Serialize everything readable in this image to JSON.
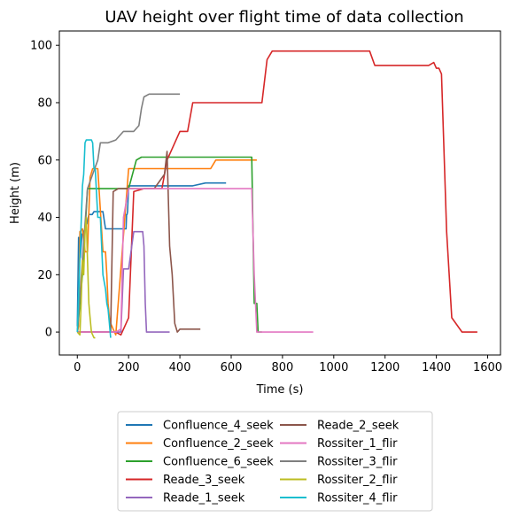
{
  "chart_data": {
    "type": "line",
    "title": "UAV height over flight time of data collection",
    "xlabel": "Time (s)",
    "ylabel": "Height (m)",
    "xlim": [
      -70,
      1650
    ],
    "ylim": [
      -8,
      105
    ],
    "xticks": [
      0,
      200,
      400,
      600,
      800,
      1000,
      1200,
      1400,
      1600
    ],
    "yticks": [
      0,
      20,
      40,
      60,
      80,
      100
    ],
    "grid": false,
    "legend_position": "below",
    "series": [
      {
        "name": "Confluence_4_seek",
        "color": "#1f77b4",
        "x": [
          0,
          5,
          12,
          18,
          25,
          30,
          38,
          45,
          52,
          58,
          65,
          70,
          80,
          90,
          100,
          110,
          120,
          128,
          132,
          140,
          150,
          160,
          170,
          180,
          190,
          192,
          194,
          196,
          200,
          205,
          210,
          220,
          240,
          300,
          400,
          450,
          500,
          540,
          560,
          580
        ],
        "y": [
          2,
          33,
          26,
          34,
          35,
          36,
          38,
          41,
          41,
          41,
          42,
          42,
          42,
          42,
          42,
          36,
          36,
          36,
          36,
          36,
          36,
          36,
          36,
          36,
          36,
          41,
          41,
          42,
          51,
          51,
          51,
          51,
          51,
          51,
          51,
          51,
          52,
          52,
          52,
          52
        ]
      },
      {
        "name": "Confluence_2_seek",
        "color": "#ff7f0e",
        "x": [
          0,
          5,
          10,
          20,
          30,
          40,
          50,
          60,
          80,
          100,
          110,
          115,
          120,
          125,
          130,
          135,
          140,
          145,
          150,
          200,
          300,
          400,
          500,
          520,
          540,
          560,
          600,
          650,
          700
        ],
        "y": [
          0,
          2,
          35,
          36,
          28,
          28,
          54,
          57,
          57,
          28,
          28,
          20,
          10,
          5,
          3,
          2,
          1,
          0,
          -1,
          57,
          57,
          57,
          57,
          57,
          60,
          60,
          60,
          60,
          60
        ]
      },
      {
        "name": "Confluence_6_seek",
        "color": "#2ca02c",
        "x": [
          0,
          20,
          40,
          60,
          80,
          100,
          150,
          200,
          230,
          250,
          300,
          400,
          500,
          600,
          680,
          690,
          700,
          705,
          720
        ],
        "y": [
          0,
          20,
          50,
          50,
          50,
          50,
          50,
          50,
          60,
          61,
          61,
          61,
          61,
          61,
          61,
          10,
          10,
          0,
          0
        ]
      },
      {
        "name": "Reade_3_seek",
        "color": "#d62728",
        "x": [
          0,
          50,
          100,
          150,
          170,
          180,
          190,
          200,
          220,
          260,
          300,
          330,
          350,
          400,
          430,
          450,
          500,
          600,
          700,
          720,
          740,
          760,
          800,
          900,
          1000,
          1100,
          1140,
          1160,
          1250,
          1300,
          1370,
          1390,
          1400,
          1410,
          1420,
          1440,
          1460,
          1500,
          1560
        ],
        "y": [
          0,
          0,
          0,
          0,
          -1,
          1,
          3,
          5,
          49,
          50,
          50,
          50,
          60,
          70,
          70,
          80,
          80,
          80,
          80,
          80,
          95,
          98,
          98,
          98,
          98,
          98,
          98,
          93,
          93,
          93,
          93,
          94,
          92,
          92,
          90,
          35,
          5,
          0,
          0
        ]
      },
      {
        "name": "Reade_1_seek",
        "color": "#9467bd",
        "x": [
          0,
          120,
          140,
          160,
          170,
          180,
          200,
          220,
          240,
          255,
          260,
          265,
          270,
          280,
          300,
          360
        ],
        "y": [
          0,
          0,
          0,
          0,
          0,
          22,
          22,
          35,
          35,
          35,
          30,
          10,
          0,
          0,
          0,
          0
        ]
      },
      {
        "name": "Reade_2_seek",
        "color": "#8c564b",
        "x": [
          0,
          100,
          120,
          130,
          140,
          160,
          200,
          260,
          300,
          340,
          350,
          360,
          370,
          380,
          390,
          400,
          430,
          480
        ],
        "y": [
          0,
          0,
          0,
          0,
          49,
          50,
          50,
          50,
          50,
          55,
          63,
          30,
          20,
          3,
          0,
          1,
          1,
          1
        ]
      },
      {
        "name": "Rossiter_1_flir",
        "color": "#e377c2",
        "x": [
          0,
          130,
          150,
          170,
          180,
          200,
          300,
          400,
          500,
          600,
          650,
          680,
          690,
          700,
          720,
          800,
          900,
          920
        ],
        "y": [
          0,
          0,
          0,
          1,
          40,
          50,
          50,
          50,
          50,
          50,
          50,
          50,
          20,
          0,
          0,
          0,
          0,
          0
        ]
      },
      {
        "name": "Rossiter_3_flir",
        "color": "#7f7f7f",
        "x": [
          0,
          40,
          60,
          80,
          90,
          100,
          120,
          150,
          180,
          200,
          220,
          240,
          250,
          260,
          280,
          300,
          330,
          360,
          400
        ],
        "y": [
          0,
          50,
          55,
          60,
          66,
          66,
          66,
          67,
          70,
          70,
          70,
          72,
          78,
          82,
          83,
          83,
          83,
          83,
          83
        ]
      },
      {
        "name": "Rossiter_2_flir",
        "color": "#bcbd22",
        "x": [
          0,
          10,
          15,
          20,
          25,
          30,
          35,
          40,
          45,
          50,
          55,
          60,
          65,
          70
        ],
        "y": [
          0,
          -1,
          10,
          25,
          20,
          35,
          40,
          25,
          10,
          5,
          0,
          -1,
          -2,
          -2
        ]
      },
      {
        "name": "Rossiter_4_flir",
        "color": "#17becf",
        "x": [
          0,
          20,
          25,
          30,
          35,
          40,
          50,
          55,
          60,
          65,
          70,
          80,
          90,
          100,
          110,
          115,
          120,
          125,
          130
        ],
        "y": [
          0,
          51,
          55,
          66,
          67,
          67,
          67,
          67,
          66,
          57,
          57,
          40,
          40,
          20,
          15,
          10,
          8,
          3,
          -2
        ]
      }
    ]
  }
}
